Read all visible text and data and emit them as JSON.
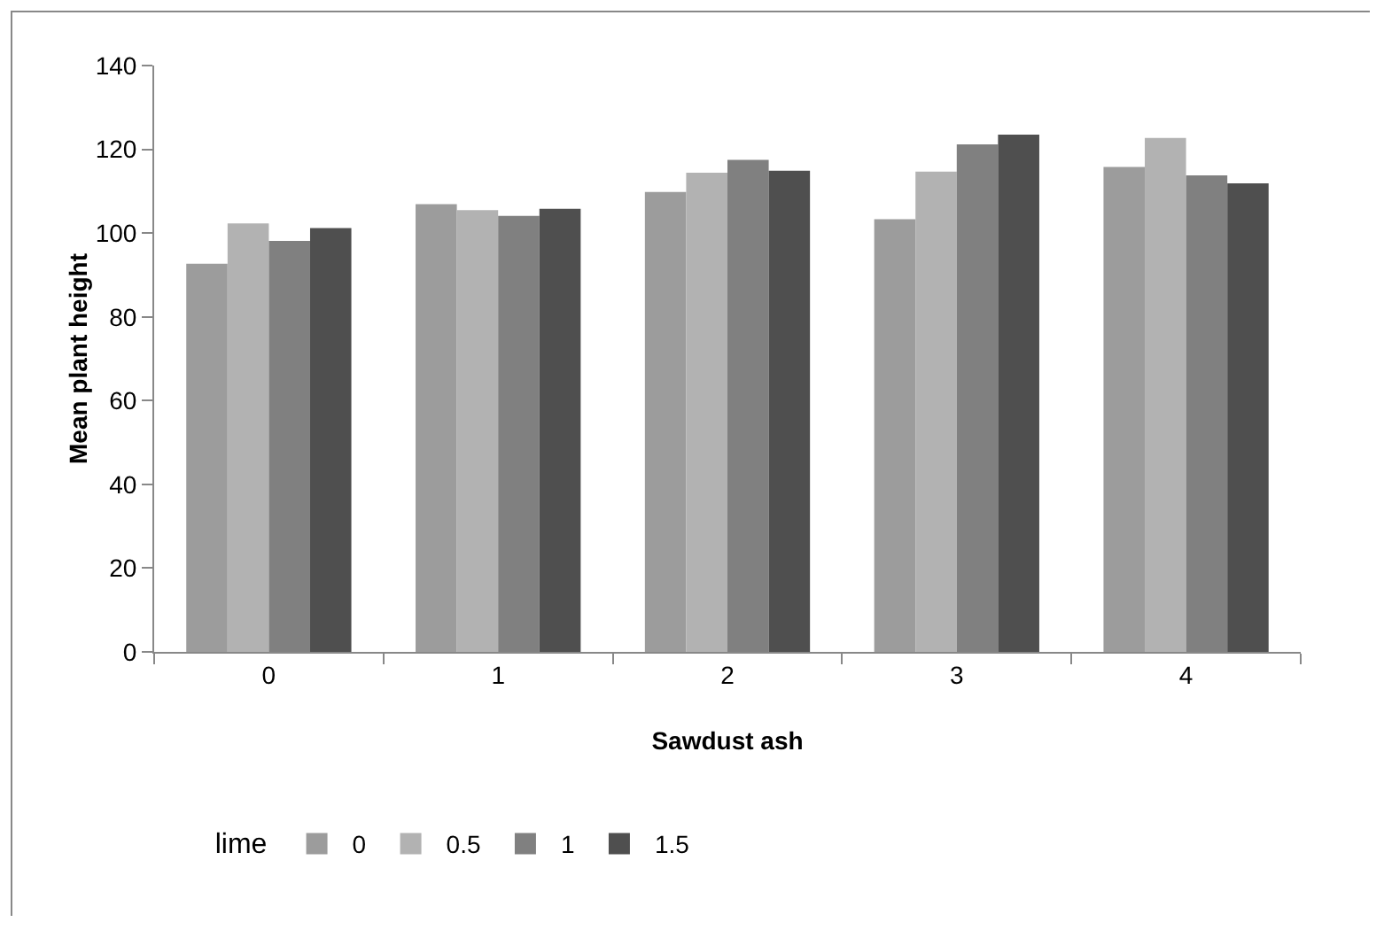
{
  "chart_data": {
    "type": "bar",
    "xlabel": "Sawdust ash",
    "ylabel": "Mean plant height",
    "legend_title": "lime",
    "categories": [
      "0",
      "1",
      "2",
      "3",
      "4"
    ],
    "series": [
      {
        "name": "0",
        "color": "#9c9c9c",
        "values": [
          92.7,
          106.9,
          109.8,
          103.3,
          115.8
        ]
      },
      {
        "name": "0.5",
        "color": "#b2b2b2",
        "values": [
          102.3,
          105.5,
          114.4,
          114.7,
          122.7
        ]
      },
      {
        "name": "1",
        "color": "#808080",
        "values": [
          98.1,
          104.1,
          117.5,
          121.2,
          113.8
        ]
      },
      {
        "name": "1.5",
        "color": "#4f4f4f",
        "values": [
          101.2,
          105.8,
          114.9,
          123.5,
          111.9
        ]
      }
    ],
    "ylim": [
      0,
      140
    ],
    "yticks": [
      0,
      20,
      40,
      60,
      80,
      100,
      120,
      140
    ],
    "grid": false,
    "legend": "bottom"
  }
}
